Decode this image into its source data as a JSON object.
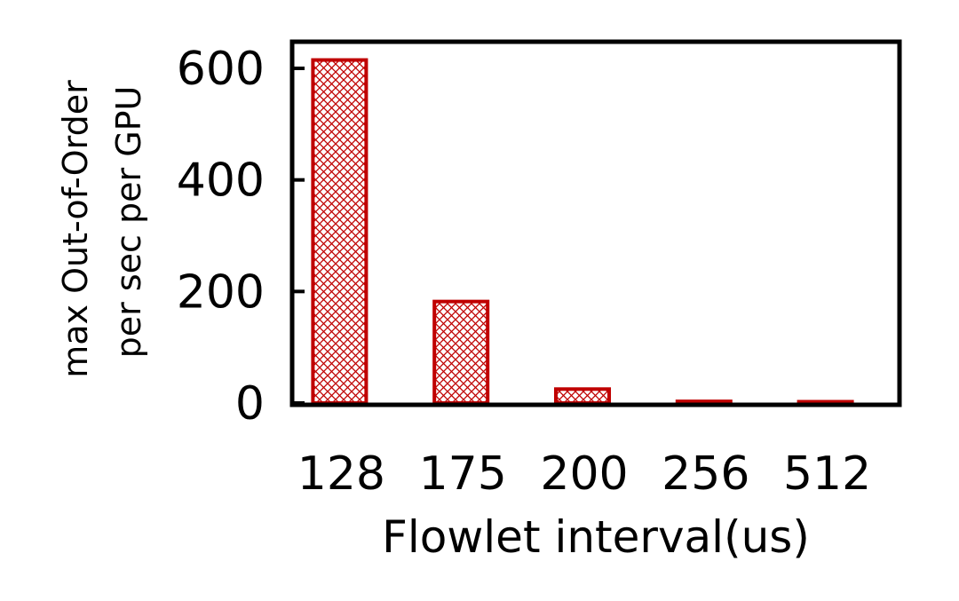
{
  "chart_data": {
    "type": "bar",
    "categories": [
      "128",
      "175",
      "200",
      "256",
      "512"
    ],
    "values": [
      615,
      182,
      25,
      3,
      1
    ],
    "xlabel": "Flowlet interval(us)",
    "ylabel_lines": [
      "max Out-of-Order",
      "per sec per GPU"
    ],
    "ylim": [
      0,
      650
    ],
    "yticks": [
      0,
      200,
      400,
      600
    ],
    "grid": false,
    "legend": "none",
    "bar_color": "#c00000",
    "bar_pattern": "crosshatch"
  }
}
